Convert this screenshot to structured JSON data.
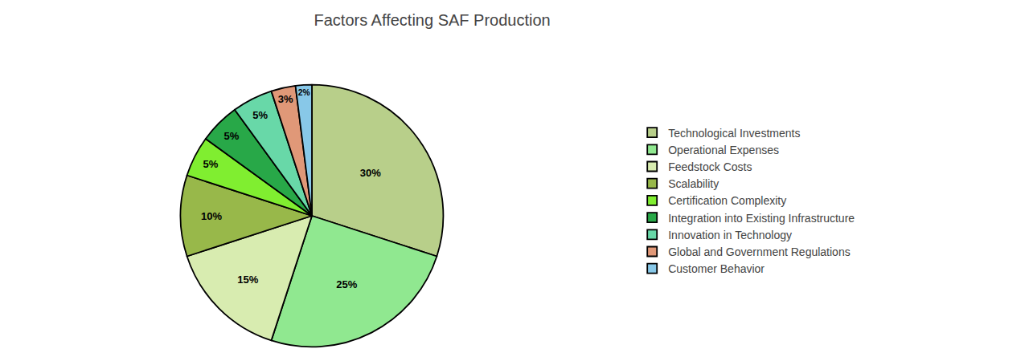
{
  "chart_data": {
    "type": "pie",
    "title": "Factors Affecting SAF Production",
    "categories": [
      "Technological Investments",
      "Operational Expenses",
      "Feedstock Costs",
      "Scalability",
      "Certification Complexity",
      "Integration into Existing Infrastructure",
      "Innovation in Technology",
      "Global and Government Regulations",
      "Customer Behavior"
    ],
    "values": [
      30,
      25,
      15,
      10,
      5,
      5,
      5,
      3,
      2
    ],
    "value_labels": [
      "30%",
      "25%",
      "15%",
      "10%",
      "5%",
      "5%",
      "5%",
      "3%",
      "2%"
    ],
    "colors": [
      "#b8cf8a",
      "#90e890",
      "#d8ecb0",
      "#98b84a",
      "#80ee30",
      "#28a848",
      "#68d8a8",
      "#e09878",
      "#88c8e8"
    ],
    "data_labels": true,
    "legend": "right"
  }
}
